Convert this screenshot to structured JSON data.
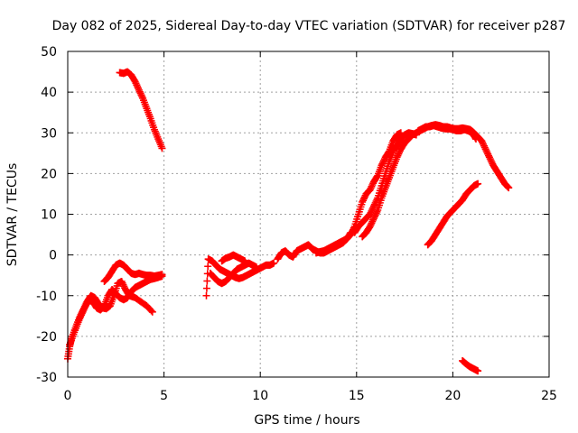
{
  "chart_data": {
    "type": "scatter",
    "title": "Day 082 of 2025, Sidereal Day-to-day VTEC variation (SDTVAR) for receiver p287",
    "xlabel": "GPS time / hours",
    "ylabel": "SDTVAR / TECUs",
    "xlim": [
      0,
      25
    ],
    "ylim": [
      -30,
      50
    ],
    "xticks": [
      0,
      5,
      10,
      15,
      20,
      25
    ],
    "yticks": [
      -30,
      -20,
      -10,
      0,
      10,
      20,
      30,
      40,
      50
    ],
    "grid": true,
    "marker": "+",
    "color": "#ff0000",
    "series": [
      {
        "name": "s1",
        "points": [
          [
            2.7,
            44.8
          ],
          [
            2.9,
            44.6
          ],
          [
            3.1,
            45.0
          ],
          [
            3.3,
            44.2
          ],
          [
            3.5,
            42.6
          ],
          [
            3.7,
            40.5
          ],
          [
            3.9,
            38.5
          ],
          [
            4.1,
            36.0
          ],
          [
            4.3,
            33.5
          ],
          [
            4.5,
            30.8
          ],
          [
            4.7,
            28.5
          ],
          [
            4.9,
            26.2
          ]
        ]
      },
      {
        "name": "s2",
        "points": [
          [
            0.0,
            -25.5
          ],
          [
            0.1,
            -22.5
          ],
          [
            0.2,
            -20.5
          ],
          [
            0.4,
            -18.0
          ],
          [
            0.6,
            -15.5
          ],
          [
            0.8,
            -13.5
          ],
          [
            1.0,
            -11.5
          ],
          [
            1.2,
            -10.0
          ],
          [
            1.4,
            -10.5
          ],
          [
            1.6,
            -12.0
          ],
          [
            1.8,
            -13.0
          ],
          [
            2.0,
            -13.2
          ],
          [
            2.2,
            -12.5
          ],
          [
            2.4,
            -10.0
          ],
          [
            2.6,
            -7.0
          ],
          [
            2.8,
            -6.5
          ],
          [
            3.0,
            -8.5
          ],
          [
            3.2,
            -10.0
          ],
          [
            3.5,
            -10.5
          ],
          [
            3.8,
            -11.5
          ],
          [
            4.1,
            -12.5
          ],
          [
            4.4,
            -14.0
          ]
        ]
      },
      {
        "name": "s3",
        "points": [
          [
            0.1,
            -22.0
          ],
          [
            0.3,
            -19.5
          ],
          [
            0.5,
            -17.0
          ],
          [
            0.7,
            -14.8
          ],
          [
            0.9,
            -12.8
          ],
          [
            1.1,
            -11.0
          ],
          [
            1.3,
            -11.5
          ],
          [
            1.5,
            -13.0
          ],
          [
            1.7,
            -13.5
          ],
          [
            1.9,
            -12.5
          ],
          [
            2.1,
            -10.0
          ],
          [
            2.3,
            -8.5
          ],
          [
            2.5,
            -9.5
          ],
          [
            2.7,
            -10.5
          ],
          [
            2.9,
            -11.0
          ],
          [
            3.1,
            -10.5
          ],
          [
            3.3,
            -9.0
          ],
          [
            3.5,
            -8.0
          ],
          [
            3.7,
            -7.5
          ],
          [
            3.9,
            -7.0
          ],
          [
            4.1,
            -6.5
          ],
          [
            4.3,
            -6.0
          ],
          [
            4.5,
            -5.8
          ],
          [
            4.7,
            -5.5
          ],
          [
            4.9,
            -5.2
          ]
        ]
      },
      {
        "name": "s4",
        "points": [
          [
            1.9,
            -6.5
          ],
          [
            2.1,
            -5.5
          ],
          [
            2.3,
            -4.0
          ],
          [
            2.5,
            -2.5
          ],
          [
            2.7,
            -2.0
          ],
          [
            2.9,
            -2.5
          ],
          [
            3.1,
            -3.5
          ],
          [
            3.3,
            -4.5
          ],
          [
            3.5,
            -4.8
          ],
          [
            3.7,
            -4.5
          ],
          [
            3.9,
            -4.8
          ],
          [
            4.1,
            -5.0
          ],
          [
            4.3,
            -5.0
          ],
          [
            4.5,
            -5.2
          ],
          [
            4.7,
            -5.0
          ],
          [
            4.9,
            -4.8
          ]
        ]
      },
      {
        "name": "s5",
        "points": [
          [
            7.2,
            -10.0
          ],
          [
            7.3,
            -1.0
          ],
          [
            7.5,
            -1.5
          ],
          [
            7.7,
            -2.5
          ],
          [
            7.9,
            -3.5
          ],
          [
            8.1,
            -4.0
          ],
          [
            8.3,
            -4.5
          ],
          [
            8.5,
            -5.0
          ],
          [
            8.7,
            -5.5
          ],
          [
            8.9,
            -5.8
          ],
          [
            9.1,
            -5.5
          ],
          [
            9.3,
            -5.0
          ],
          [
            9.5,
            -4.5
          ],
          [
            9.7,
            -4.0
          ],
          [
            9.9,
            -3.5
          ],
          [
            10.1,
            -3.0
          ],
          [
            10.3,
            -2.5
          ],
          [
            10.5,
            -2.5
          ],
          [
            10.7,
            -2.0
          ]
        ]
      },
      {
        "name": "s6",
        "points": [
          [
            7.4,
            -4.5
          ],
          [
            7.6,
            -5.5
          ],
          [
            7.8,
            -6.5
          ],
          [
            8.0,
            -7.0
          ],
          [
            8.2,
            -6.5
          ],
          [
            8.4,
            -5.5
          ],
          [
            8.6,
            -4.5
          ],
          [
            8.8,
            -3.5
          ],
          [
            9.0,
            -3.0
          ],
          [
            9.2,
            -2.5
          ],
          [
            9.4,
            -2.0
          ],
          [
            9.6,
            -2.5
          ],
          [
            9.8,
            -3.0
          ]
        ]
      },
      {
        "name": "s7",
        "points": [
          [
            8.0,
            -1.5
          ],
          [
            8.2,
            -0.8
          ],
          [
            8.4,
            -0.5
          ],
          [
            8.6,
            0.0
          ],
          [
            8.8,
            -0.5
          ],
          [
            9.0,
            -1.0
          ],
          [
            9.2,
            -1.5
          ]
        ]
      },
      {
        "name": "s8",
        "points": [
          [
            10.9,
            -1.0
          ],
          [
            11.1,
            0.5
          ],
          [
            11.3,
            1.0
          ],
          [
            11.5,
            0.0
          ],
          [
            11.7,
            -0.5
          ],
          [
            11.9,
            1.0
          ],
          [
            12.1,
            1.5
          ],
          [
            12.3,
            2.0
          ],
          [
            12.5,
            2.5
          ],
          [
            12.7,
            1.5
          ],
          [
            12.9,
            1.0
          ],
          [
            13.1,
            0.5
          ],
          [
            13.3,
            0.5
          ],
          [
            13.5,
            1.0
          ],
          [
            13.7,
            1.5
          ],
          [
            13.9,
            2.0
          ],
          [
            14.1,
            2.5
          ],
          [
            14.3,
            3.0
          ],
          [
            14.5,
            4.0
          ],
          [
            14.7,
            5.5
          ]
        ]
      },
      {
        "name": "s9",
        "points": [
          [
            12.9,
            0.5
          ],
          [
            13.1,
            0.8
          ],
          [
            13.3,
            1.0
          ],
          [
            13.5,
            1.5
          ],
          [
            13.7,
            2.0
          ],
          [
            13.9,
            2.5
          ],
          [
            14.1,
            3.0
          ],
          [
            14.3,
            3.5
          ],
          [
            14.5,
            4.0
          ],
          [
            14.7,
            5.0
          ],
          [
            14.9,
            7.0
          ],
          [
            15.1,
            10.0
          ],
          [
            15.3,
            13.0
          ],
          [
            15.5,
            15.0
          ],
          [
            15.7,
            16.0
          ],
          [
            15.9,
            18.0
          ],
          [
            16.1,
            19.5
          ],
          [
            16.3,
            22.0
          ],
          [
            16.5,
            24.0
          ],
          [
            16.7,
            25.5
          ],
          [
            16.9,
            28.0
          ],
          [
            17.1,
            29.5
          ],
          [
            17.3,
            30.0
          ]
        ]
      },
      {
        "name": "s10",
        "points": [
          [
            14.9,
            5.5
          ],
          [
            15.1,
            7.0
          ],
          [
            15.3,
            8.0
          ],
          [
            15.5,
            9.0
          ],
          [
            15.7,
            10.0
          ],
          [
            15.9,
            12.0
          ],
          [
            16.1,
            14.0
          ],
          [
            16.3,
            17.0
          ],
          [
            16.5,
            20.0
          ],
          [
            16.7,
            23.0
          ],
          [
            16.9,
            25.5
          ],
          [
            17.1,
            27.0
          ],
          [
            17.3,
            28.5
          ],
          [
            17.5,
            29.5
          ],
          [
            17.7,
            30.0
          ],
          [
            17.9,
            29.8
          ],
          [
            18.1,
            29.5
          ]
        ]
      },
      {
        "name": "s11",
        "points": [
          [
            15.3,
            4.5
          ],
          [
            15.5,
            5.5
          ],
          [
            15.7,
            7.0
          ],
          [
            15.9,
            9.0
          ],
          [
            16.1,
            11.0
          ],
          [
            16.3,
            14.0
          ],
          [
            16.5,
            16.5
          ],
          [
            16.7,
            19.0
          ],
          [
            16.9,
            21.5
          ],
          [
            17.1,
            24.0
          ],
          [
            17.3,
            26.0
          ],
          [
            17.5,
            27.5
          ],
          [
            17.7,
            28.5
          ],
          [
            17.9,
            29.5
          ],
          [
            18.1,
            30.0
          ],
          [
            18.3,
            30.5
          ],
          [
            18.5,
            31.0
          ],
          [
            18.7,
            31.5
          ],
          [
            18.9,
            31.8
          ],
          [
            19.1,
            32.0
          ],
          [
            19.3,
            31.8
          ],
          [
            19.5,
            31.5
          ],
          [
            19.7,
            31.5
          ],
          [
            19.9,
            31.2
          ],
          [
            20.1,
            31.0
          ],
          [
            20.3,
            31.0
          ],
          [
            20.5,
            31.2
          ],
          [
            20.7,
            31.0
          ],
          [
            20.9,
            30.8
          ],
          [
            21.1,
            30.0
          ],
          [
            21.3,
            29.0
          ],
          [
            21.5,
            28.0
          ],
          [
            21.7,
            26.0
          ],
          [
            21.9,
            24.0
          ],
          [
            22.1,
            22.0
          ],
          [
            22.3,
            20.5
          ],
          [
            22.5,
            19.0
          ],
          [
            22.7,
            17.5
          ],
          [
            22.9,
            16.5
          ]
        ]
      },
      {
        "name": "s12",
        "points": [
          [
            18.2,
            30.5
          ],
          [
            18.4,
            31.0
          ],
          [
            18.6,
            31.5
          ],
          [
            18.8,
            31.5
          ],
          [
            19.0,
            31.8
          ],
          [
            19.2,
            31.5
          ],
          [
            19.4,
            31.2
          ],
          [
            19.6,
            31.0
          ],
          [
            19.8,
            31.0
          ],
          [
            20.0,
            30.8
          ],
          [
            20.2,
            30.5
          ],
          [
            20.4,
            30.5
          ],
          [
            20.6,
            30.8
          ],
          [
            20.8,
            30.5
          ],
          [
            21.0,
            30.0
          ],
          [
            21.2,
            28.5
          ]
        ]
      },
      {
        "name": "s13",
        "points": [
          [
            18.7,
            2.5
          ],
          [
            18.9,
            3.5
          ],
          [
            19.1,
            5.0
          ],
          [
            19.3,
            6.5
          ],
          [
            19.5,
            8.0
          ],
          [
            19.7,
            9.5
          ],
          [
            19.9,
            10.5
          ],
          [
            20.1,
            11.5
          ],
          [
            20.3,
            12.5
          ],
          [
            20.5,
            13.5
          ],
          [
            20.7,
            15.0
          ],
          [
            20.9,
            16.0
          ],
          [
            21.1,
            17.0
          ],
          [
            21.3,
            17.5
          ]
        ]
      },
      {
        "name": "s14",
        "points": [
          [
            20.5,
            -26.0
          ],
          [
            20.7,
            -26.8
          ],
          [
            20.9,
            -27.5
          ],
          [
            21.1,
            -28.0
          ],
          [
            21.3,
            -28.5
          ]
        ]
      }
    ]
  }
}
